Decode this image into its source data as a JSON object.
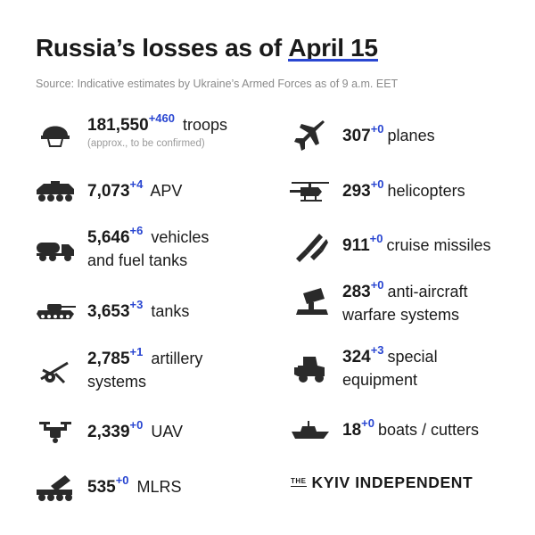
{
  "header": {
    "title_main": "Russia’s losses  as of ",
    "title_date": "April 15",
    "source": "Source: Indicative estimates by Ukraine’s Armed Forces as of 9 a.m. EET"
  },
  "left": [
    {
      "icon": "helmet-icon",
      "value": "181,550",
      "delta": "+460",
      "label": "troops",
      "label2": "",
      "note": "(approx., to be confirmed)"
    },
    {
      "icon": "apv-icon",
      "value": "7,073",
      "delta": "+4",
      "label": "APV",
      "label2": "",
      "note": ""
    },
    {
      "icon": "fuel-truck-icon",
      "value": "5,646",
      "delta": "+6",
      "label": "vehicles",
      "label2": "and fuel tanks",
      "note": ""
    },
    {
      "icon": "tank-icon",
      "value": "3,653",
      "delta": "+3",
      "label": "tanks",
      "label2": "",
      "note": ""
    },
    {
      "icon": "artillery-icon",
      "value": "2,785",
      "delta": "+1",
      "label": "artillery",
      "label2": "systems",
      "note": ""
    },
    {
      "icon": "drone-icon",
      "value": "2,339",
      "delta": "+0",
      "label": "UAV",
      "label2": "",
      "note": ""
    },
    {
      "icon": "mlrs-icon",
      "value": "535",
      "delta": "+0",
      "label": "MLRS",
      "label2": "",
      "note": ""
    }
  ],
  "right": [
    {
      "icon": "plane-icon",
      "value": "307",
      "delta": "+0",
      "label": "planes",
      "label2": ""
    },
    {
      "icon": "helicopter-icon",
      "value": "293",
      "delta": "+0",
      "label": "helicopters",
      "label2": ""
    },
    {
      "icon": "missile-icon",
      "value": "911",
      "delta": "+0",
      "label": "cruise missiles",
      "label2": ""
    },
    {
      "icon": "anti-aircraft-icon",
      "value": "283",
      "delta": "+0",
      "label": "anti-aircraft",
      "label2": "warfare systems"
    },
    {
      "icon": "special-equipment-icon",
      "value": "324",
      "delta": "+3",
      "label": "special",
      "label2": "equipment"
    },
    {
      "icon": "boat-icon",
      "value": "18",
      "delta": "+0",
      "label": "boats / cutters",
      "label2": ""
    }
  ],
  "brand": {
    "the": "THE",
    "name": "KYIV INDEPENDENT"
  },
  "colors": {
    "accent": "#2946d1",
    "text": "#1a1a1a",
    "muted": "#8a8a8a"
  }
}
